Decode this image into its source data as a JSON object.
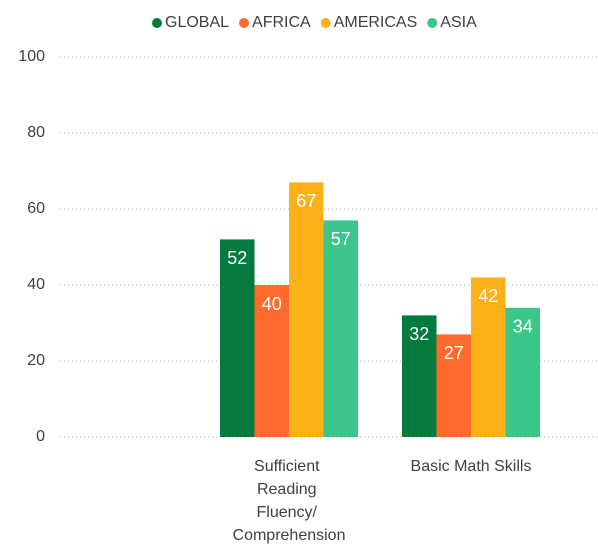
{
  "chart_data": {
    "type": "bar",
    "categories": [
      null,
      "Sufficient Reading Fluency/ Comprehension",
      "Basic Math Skills"
    ],
    "series": [
      {
        "name": "GLOBAL",
        "color": "#047a3f",
        "values": [
          null,
          52,
          32
        ]
      },
      {
        "name": "AFRICA",
        "color": "#ff6b2c",
        "values": [
          null,
          40,
          27
        ]
      },
      {
        "name": "AMERICAS",
        "color": "#fbb117",
        "values": [
          null,
          67,
          42
        ]
      },
      {
        "name": "ASIA",
        "color": "#3cc68a",
        "values": [
          null,
          57,
          34
        ]
      }
    ],
    "ylim": [
      0,
      100
    ],
    "yticks": [
      0,
      20,
      40,
      60,
      80,
      100
    ],
    "grid": true,
    "legend": "top"
  }
}
